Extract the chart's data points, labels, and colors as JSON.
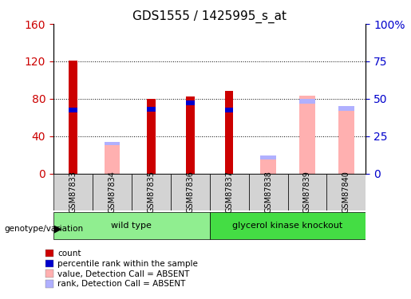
{
  "title": "GDS1555 / 1425995_s_at",
  "samples": [
    "GSM87833",
    "GSM87834",
    "GSM87835",
    "GSM87836",
    "GSM87837",
    "GSM87838",
    "GSM87839",
    "GSM87840"
  ],
  "left_ylim": [
    0,
    160
  ],
  "right_ylim": [
    0,
    100
  ],
  "left_yticks": [
    0,
    40,
    80,
    120,
    160
  ],
  "right_yticks": [
    0,
    25,
    50,
    75,
    100
  ],
  "right_yticklabels": [
    "0",
    "25",
    "50",
    "75",
    "100%"
  ],
  "left_ycolor": "#CC0000",
  "right_ycolor": "#0000CC",
  "bar_data": {
    "red_bar": [
      121,
      0,
      80,
      82,
      88,
      0,
      0,
      0
    ],
    "blue_seg_top": [
      65,
      0,
      66,
      73,
      65,
      0,
      0,
      0
    ],
    "blue_seg_height": [
      5,
      0,
      5,
      5,
      5,
      0,
      0,
      0
    ],
    "pink_bar": [
      0,
      32,
      0,
      0,
      0,
      18,
      83,
      70
    ],
    "lavender_seg_top": [
      0,
      30,
      0,
      0,
      0,
      15,
      75,
      67
    ],
    "lavender_seg_height": [
      0,
      4,
      0,
      0,
      0,
      4,
      5,
      5
    ]
  },
  "colors": {
    "red": "#CC0000",
    "blue": "#0000CC",
    "pink": "#FFB0B0",
    "lavender": "#B0B0FF",
    "plot_bg": "#FFFFFF",
    "label_area_bg": "#D3D3D3",
    "wt_color": "#90EE90",
    "gk_color": "#44DD44"
  },
  "legend": [
    {
      "label": "count",
      "color": "#CC0000"
    },
    {
      "label": "percentile rank within the sample",
      "color": "#0000CC"
    },
    {
      "label": "value, Detection Call = ABSENT",
      "color": "#FFB0B0"
    },
    {
      "label": "rank, Detection Call = ABSENT",
      "color": "#B0B0FF"
    }
  ],
  "genotype_label": "genotype/variation",
  "bar_width": 0.4
}
